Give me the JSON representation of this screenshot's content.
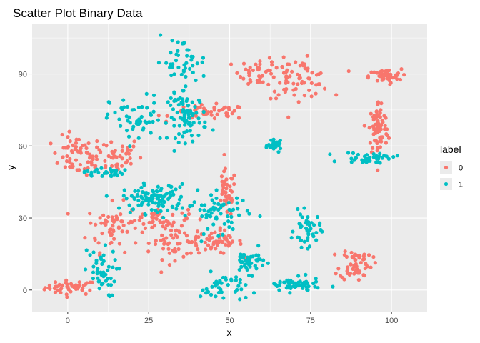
{
  "chart_data": {
    "type": "scatter",
    "title": "Scatter Plot Binary Data",
    "xlabel": "x",
    "ylabel": "y",
    "xlim": [
      -11,
      111
    ],
    "ylim": [
      -9,
      111
    ],
    "x_ticks": [
      0,
      25,
      50,
      75,
      100
    ],
    "y_ticks": [
      0,
      30,
      60,
      90
    ],
    "grid": true,
    "legend": {
      "title": "label",
      "position": "right",
      "entries": [
        "0",
        "1"
      ]
    },
    "colors": {
      "0": "#F8766D",
      "1": "#00BFC4",
      "panel": "#EBEBEB",
      "grid": "#FFFFFF"
    },
    "clusters": [
      {
        "label": "0",
        "x": 1,
        "y": 1,
        "sx": 4,
        "sy": 1.5,
        "n": 45
      },
      {
        "label": "0",
        "x": 3,
        "y": 56,
        "sx": 4,
        "sy": 4,
        "n": 55
      },
      {
        "label": "0",
        "x": 13,
        "y": 56,
        "sx": 5,
        "sy": 4,
        "n": 50
      },
      {
        "label": "0",
        "x": 14,
        "y": 26,
        "sx": 4,
        "sy": 5,
        "n": 55
      },
      {
        "label": "0",
        "x": 27,
        "y": 30,
        "sx": 5,
        "sy": 2,
        "n": 40
      },
      {
        "label": "0",
        "x": 33,
        "y": 21,
        "sx": 4,
        "sy": 4,
        "n": 55
      },
      {
        "label": "0",
        "x": 46,
        "y": 20,
        "sx": 4,
        "sy": 2.5,
        "n": 60
      },
      {
        "label": "0",
        "x": 49,
        "y": 40,
        "sx": 1.5,
        "sy": 5,
        "n": 40
      },
      {
        "label": "0",
        "x": 44,
        "y": 74,
        "sx": 6,
        "sy": 1.5,
        "n": 50
      },
      {
        "label": "0",
        "x": 59,
        "y": 91,
        "sx": 3,
        "sy": 3,
        "n": 40
      },
      {
        "label": "0",
        "x": 71,
        "y": 88,
        "sx": 5,
        "sy": 4,
        "n": 70
      },
      {
        "label": "0",
        "x": 98,
        "y": 89,
        "sx": 2.5,
        "sy": 1.5,
        "n": 45
      },
      {
        "label": "0",
        "x": 96,
        "y": 67,
        "sx": 1.5,
        "sy": 6,
        "n": 85
      },
      {
        "label": "0",
        "x": 89,
        "y": 11,
        "sx": 2.5,
        "sy": 3.5,
        "n": 60
      },
      {
        "label": "1",
        "x": 10,
        "y": 7,
        "sx": 2.5,
        "sy": 5,
        "n": 45
      },
      {
        "label": "1",
        "x": 11,
        "y": 49,
        "sx": 3,
        "sy": 1,
        "n": 30
      },
      {
        "label": "1",
        "x": 21,
        "y": 71,
        "sx": 4,
        "sy": 5,
        "n": 50
      },
      {
        "label": "1",
        "x": 27,
        "y": 38,
        "sx": 5,
        "sy": 3,
        "n": 110
      },
      {
        "label": "1",
        "x": 35,
        "y": 95,
        "sx": 4,
        "sy": 5,
        "n": 45
      },
      {
        "label": "1",
        "x": 37,
        "y": 72,
        "sx": 3,
        "sy": 5,
        "n": 80
      },
      {
        "label": "1",
        "x": 47,
        "y": 32,
        "sx": 4.5,
        "sy": 4,
        "n": 60
      },
      {
        "label": "1",
        "x": 48,
        "y": 1,
        "sx": 3.5,
        "sy": 3,
        "n": 40
      },
      {
        "label": "1",
        "x": 56,
        "y": 12,
        "sx": 2.5,
        "sy": 2.5,
        "n": 45
      },
      {
        "label": "1",
        "x": 64,
        "y": 60,
        "sx": 1,
        "sy": 1,
        "n": 30
      },
      {
        "label": "1",
        "x": 70,
        "y": 2,
        "sx": 4,
        "sy": 1.5,
        "n": 60
      },
      {
        "label": "1",
        "x": 74,
        "y": 25,
        "sx": 2,
        "sy": 3.5,
        "n": 45
      },
      {
        "label": "1",
        "x": 93,
        "y": 55,
        "sx": 4,
        "sy": 1.2,
        "n": 40
      }
    ]
  }
}
